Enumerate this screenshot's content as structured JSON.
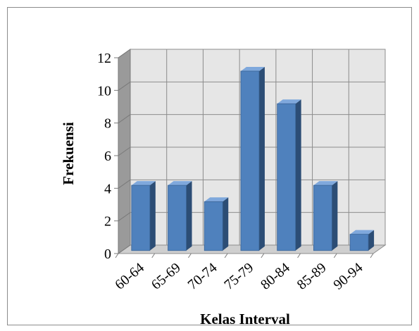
{
  "chart_data": {
    "type": "bar",
    "categories": [
      "60-64",
      "65-69",
      "70-74",
      "75-79",
      "80-84",
      "85-89",
      "90-94"
    ],
    "values": [
      4,
      4,
      3,
      11,
      9,
      4,
      1
    ],
    "xlabel": "Kelas Interval",
    "ylabel": "Frekuensi",
    "ylim": [
      0,
      12
    ],
    "yticks": [
      0,
      2,
      4,
      6,
      8,
      10,
      12
    ],
    "grid": true,
    "legend": "none",
    "style": "3d-column",
    "colors": {
      "bar_front": "#4f81bd",
      "bar_side": "#2c4d75",
      "bar_top": "#7fa8dc",
      "wall": "#e6e6e6",
      "wall_side": "#9a9a9a",
      "grid": "#8c8c8c"
    }
  }
}
